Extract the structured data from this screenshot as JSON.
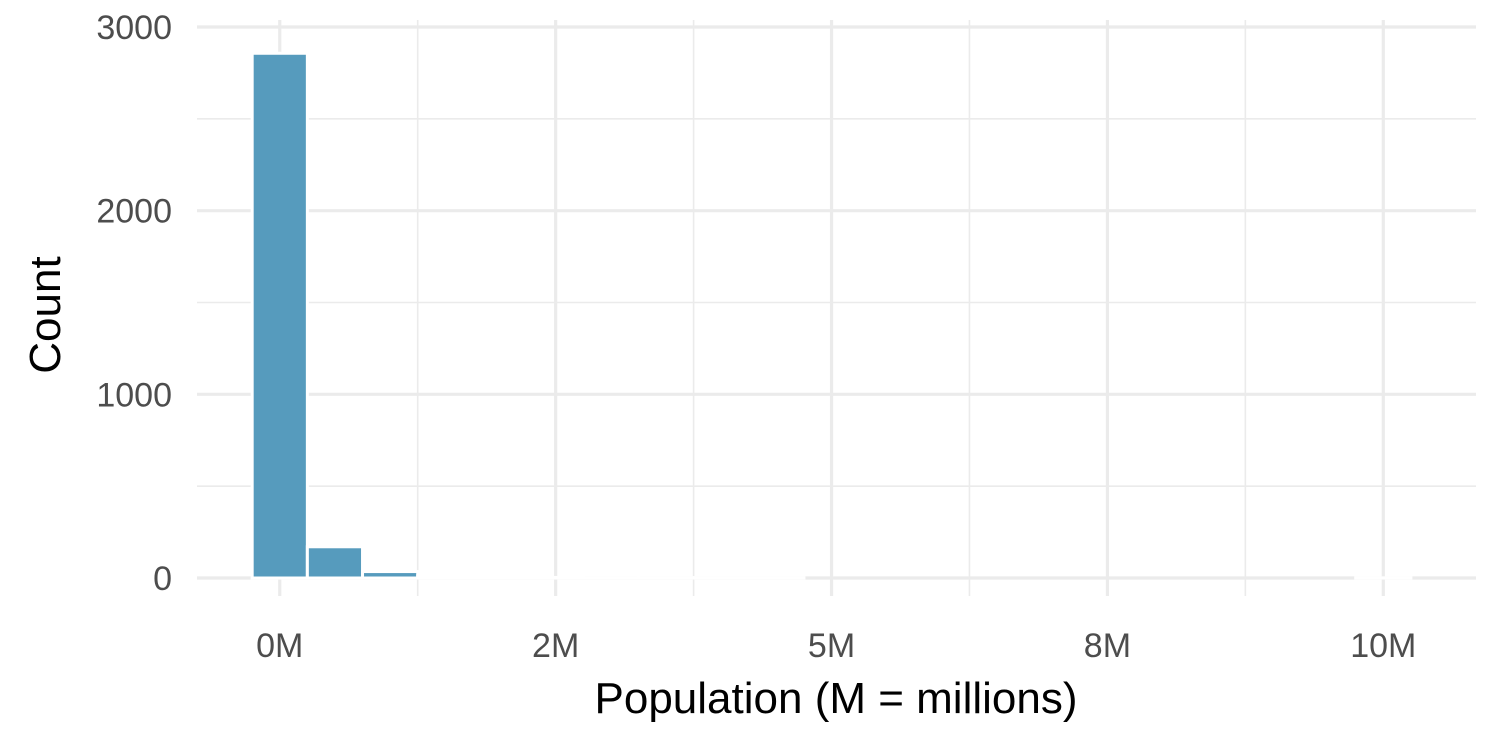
{
  "chart_data": {
    "type": "bar",
    "title": "",
    "xlabel": "Population (M = millions)",
    "ylabel": "Count",
    "bin_width": 500000,
    "bins": [
      {
        "x0": -250000,
        "x1": 250000,
        "count": 2857
      },
      {
        "x0": 250000,
        "x1": 750000,
        "count": 170
      },
      {
        "x0": 750000,
        "x1": 1250000,
        "count": 35
      },
      {
        "x0": 1250000,
        "x1": 1750000,
        "count": 12
      },
      {
        "x0": 1750000,
        "x1": 2250000,
        "count": 7
      },
      {
        "x0": 2250000,
        "x1": 2750000,
        "count": 3
      },
      {
        "x0": 2750000,
        "x1": 3250000,
        "count": 2
      },
      {
        "x0": 3250000,
        "x1": 3750000,
        "count": 2
      },
      {
        "x0": 3750000,
        "x1": 4250000,
        "count": 1
      },
      {
        "x0": 4250000,
        "x1": 4750000,
        "count": 1
      },
      {
        "x0": 4750000,
        "x1": 5250000,
        "count": 0
      },
      {
        "x0": 5250000,
        "x1": 5750000,
        "count": 0
      },
      {
        "x0": 5750000,
        "x1": 6250000,
        "count": 0
      },
      {
        "x0": 6250000,
        "x1": 6750000,
        "count": 0
      },
      {
        "x0": 6750000,
        "x1": 7250000,
        "count": 0
      },
      {
        "x0": 7250000,
        "x1": 7750000,
        "count": 0
      },
      {
        "x0": 7750000,
        "x1": 8250000,
        "count": 0
      },
      {
        "x0": 8250000,
        "x1": 8750000,
        "count": 0
      },
      {
        "x0": 8750000,
        "x1": 9250000,
        "count": 0
      },
      {
        "x0": 9250000,
        "x1": 9750000,
        "count": 0
      },
      {
        "x0": 9750000,
        "x1": 10250000,
        "count": 1
      }
    ],
    "x_ticks": [
      {
        "value": 0,
        "label": "0M"
      },
      {
        "value": 2500000,
        "label": "2M"
      },
      {
        "value": 5000000,
        "label": "5M"
      },
      {
        "value": 7500000,
        "label": "8M"
      },
      {
        "value": 10000000,
        "label": "10M"
      }
    ],
    "y_ticks": [
      {
        "value": 0,
        "label": "0"
      },
      {
        "value": 1000,
        "label": "1000"
      },
      {
        "value": 2000,
        "label": "2000"
      },
      {
        "value": 3000,
        "label": "3000"
      }
    ],
    "xlim": [
      -750000,
      10840000
    ],
    "ylim": [
      0,
      3000
    ],
    "grid": true,
    "bar_color": "#569bbd",
    "grid_color": "#ebebeb"
  }
}
